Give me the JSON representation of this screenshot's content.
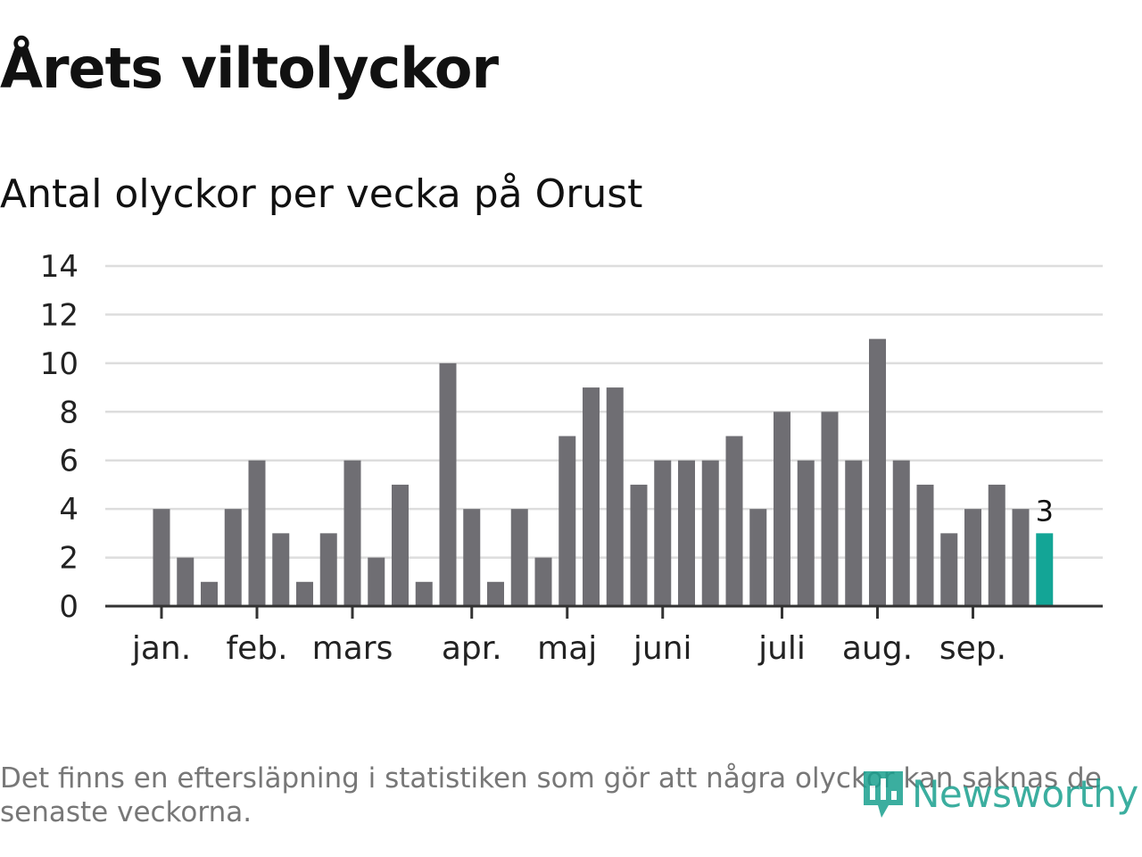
{
  "header": {
    "title": "Årets viltolyckor",
    "subtitle": "Antal olyckor per vecka på Orust"
  },
  "chart_data": {
    "type": "bar",
    "title": "Årets viltolyckor",
    "subtitle": "Antal olyckor per vecka på Orust",
    "xlabel": "",
    "ylabel": "",
    "ylim": [
      0,
      14
    ],
    "yticks": [
      0,
      2,
      4,
      6,
      8,
      10,
      12,
      14
    ],
    "grid": true,
    "values": [
      4,
      2,
      1,
      4,
      6,
      3,
      1,
      3,
      6,
      2,
      5,
      1,
      10,
      4,
      1,
      4,
      2,
      7,
      9,
      9,
      5,
      6,
      6,
      6,
      7,
      4,
      8,
      6,
      8,
      6,
      11,
      6,
      5,
      3,
      4,
      5,
      4,
      3
    ],
    "month_ticks": [
      {
        "label": "jan.",
        "index": 0
      },
      {
        "label": "feb.",
        "index": 4
      },
      {
        "label": "mars",
        "index": 8
      },
      {
        "label": "apr.",
        "index": 13
      },
      {
        "label": "maj",
        "index": 17
      },
      {
        "label": "juni",
        "index": 21
      },
      {
        "label": "juli",
        "index": 26
      },
      {
        "label": "aug.",
        "index": 30
      },
      {
        "label": "sep.",
        "index": 34
      }
    ],
    "highlight_last": true,
    "last_value_label": "3",
    "colors": {
      "bar": "#6f6e73",
      "highlight": "#13a596",
      "grid": "#dddddd",
      "axis": "#333333",
      "tick_text": "#222222"
    }
  },
  "footer": {
    "note": "Det finns en eftersläpning i statistiken som gör att några olyckor kan saknas de senaste veckorna.",
    "brand": "Newsworthy",
    "brand_icon": "bar-chart-bubble-icon",
    "brand_color": "#1aa08f"
  }
}
